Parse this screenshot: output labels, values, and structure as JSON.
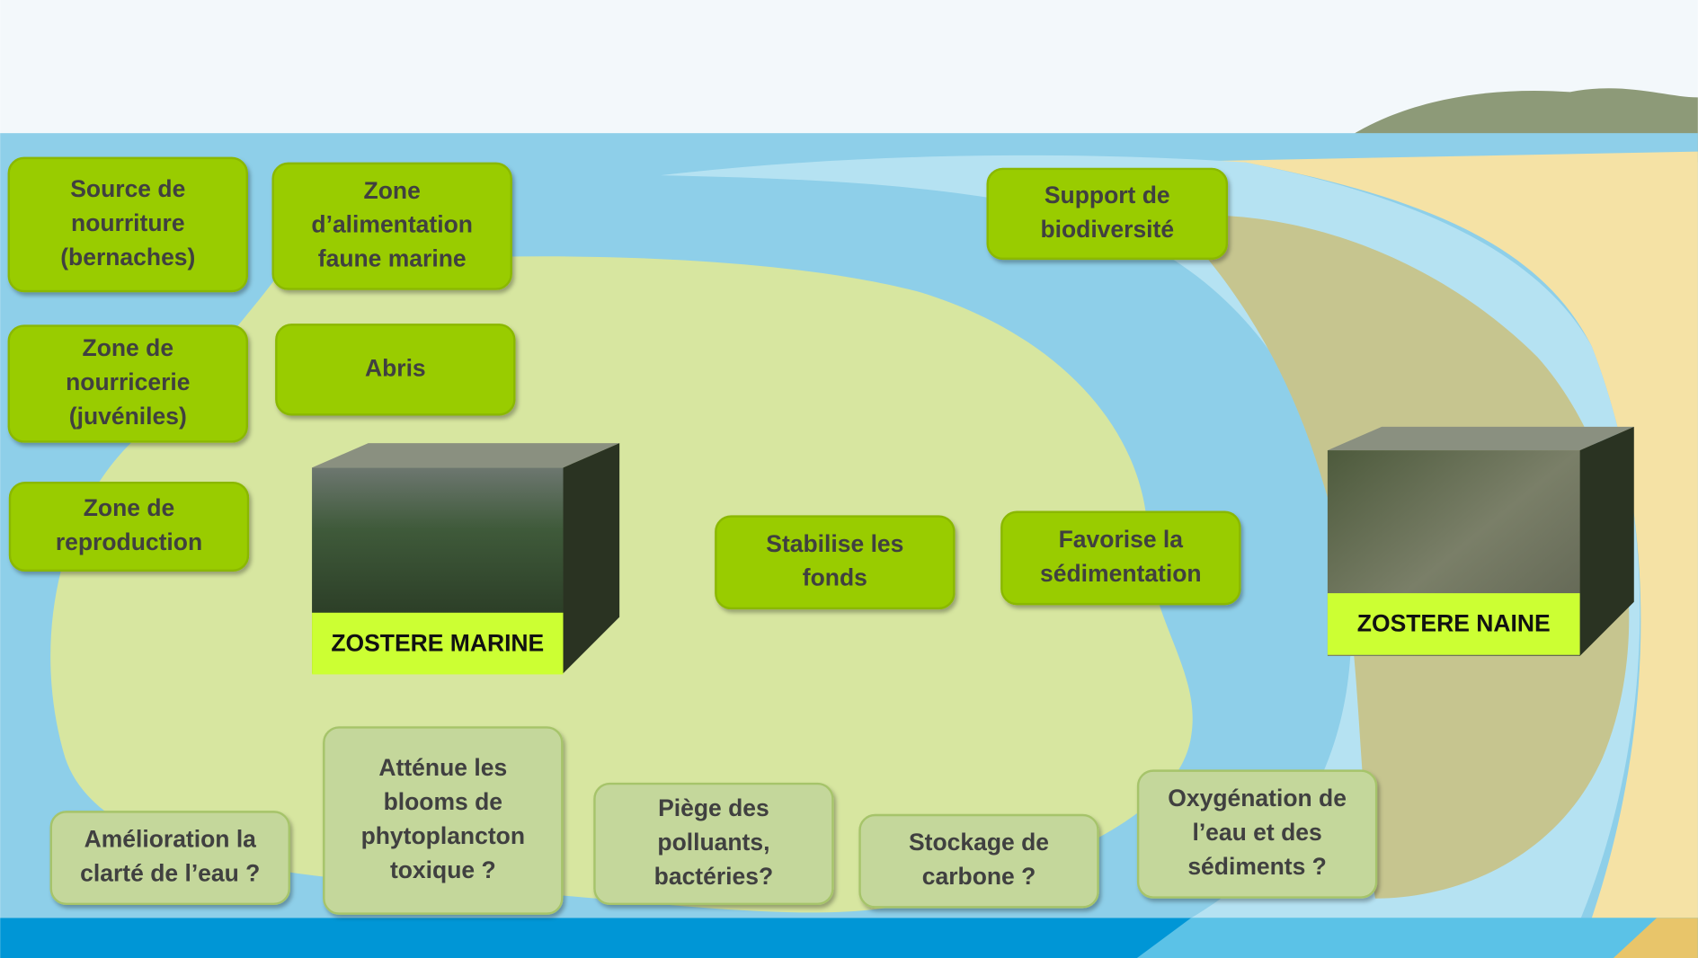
{
  "services": [
    {
      "lines": [
        "Source de",
        "nourriture",
        "(bernaches)"
      ]
    },
    {
      "lines": [
        "Zone",
        "d’alimentation",
        "faune marine"
      ]
    },
    {
      "lines": [
        "Zone de",
        "nourricerie",
        "(juvéniles)"
      ]
    },
    {
      "lines": [
        "Abris"
      ]
    },
    {
      "lines": [
        "Zone de",
        "reproduction"
      ]
    },
    {
      "lines": [
        "Support de",
        "biodiversité"
      ]
    },
    {
      "lines": [
        "Stabilise les",
        "fonds"
      ]
    },
    {
      "lines": [
        "Favorise la",
        "sédimentation"
      ]
    },
    {
      "lines": [
        "Amélioration la",
        "clarté de l’eau ?"
      ]
    },
    {
      "lines": [
        "Atténue les",
        "blooms de",
        "phytoplancton",
        "toxique ?"
      ]
    },
    {
      "lines": [
        "Piège des",
        "polluants,",
        "bactéries?"
      ]
    },
    {
      "lines": [
        "Stockage de",
        "carbone ?"
      ]
    },
    {
      "lines": [
        "Oxygénation de",
        "l’eau et des",
        "sédiments ?"
      ]
    }
  ],
  "species": [
    {
      "label": "ZOSTERE MARINE"
    },
    {
      "label": "ZOSTERE NAINE"
    }
  ]
}
